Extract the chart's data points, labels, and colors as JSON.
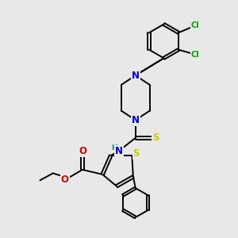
{
  "bg_color": "#e8e8e8",
  "bond_color": "#000000",
  "bond_width": 1.4,
  "atom_colors": {
    "N": "#0000cc",
    "O": "#cc0000",
    "S_thio": "#cccc00",
    "S_ring": "#cccc00",
    "Cl": "#00aa00",
    "H": "#008888"
  },
  "font_size_atom": 8.5,
  "font_size_small": 7.0,
  "figsize": [
    3.0,
    3.0
  ],
  "dpi": 100
}
